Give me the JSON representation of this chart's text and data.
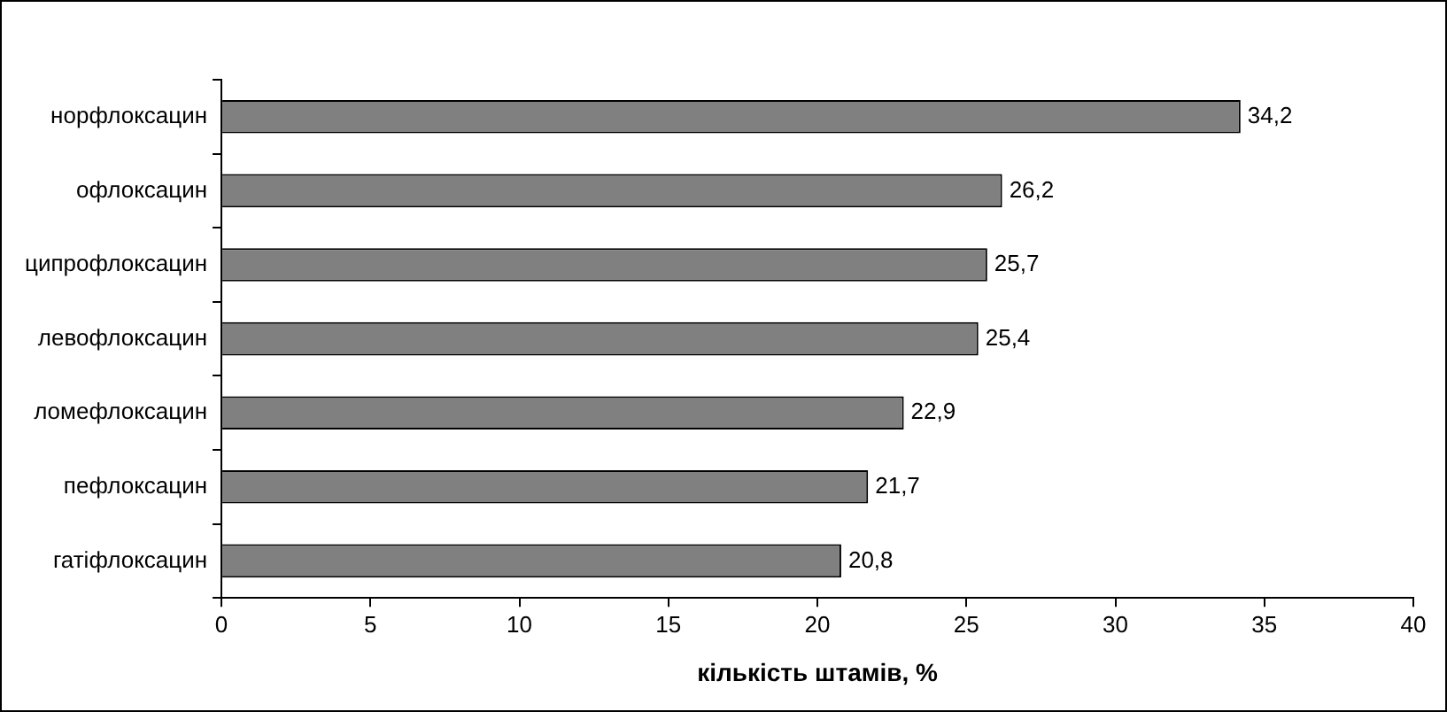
{
  "chart_data": {
    "type": "bar",
    "orientation": "horizontal",
    "xlabel": "кількість штамів, %",
    "categories": [
      "норфлоксацин",
      "офлоксацин",
      "ципрофлоксацин",
      "левофлоксацин",
      "ломефлоксацин",
      "пефлоксацин",
      "гатіфлоксацин"
    ],
    "values": [
      34.2,
      26.2,
      25.7,
      25.4,
      22.9,
      21.7,
      20.8
    ],
    "value_labels": [
      "34,2",
      "26,2",
      "25,7",
      "25,4",
      "22,9",
      "21,7",
      "20,8"
    ],
    "color": "#808080",
    "xlim": [
      0,
      40
    ],
    "xticks": [
      0,
      5,
      10,
      15,
      20,
      25,
      30,
      35,
      40
    ],
    "grid": false,
    "legend": false
  }
}
